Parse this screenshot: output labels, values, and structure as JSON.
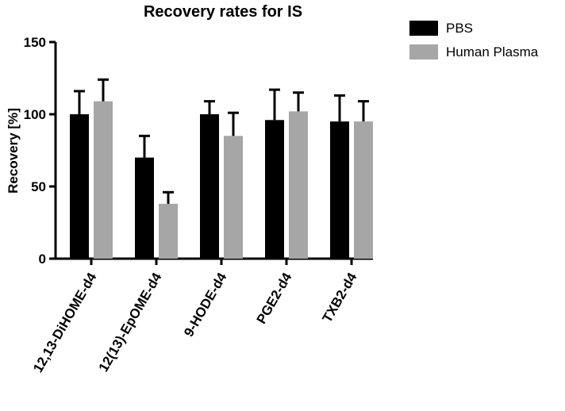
{
  "chart_data": {
    "type": "bar",
    "title": "Recovery rates for IS",
    "xlabel": "",
    "ylabel": "Recovery [%]",
    "ylim": [
      0,
      150
    ],
    "yticks": [
      0,
      50,
      100,
      150
    ],
    "categories": [
      "12,13-DiHOME-d4",
      "12(13)-EpOME-d4",
      "9-HODE-d4",
      "PGE2-d4",
      "TXB2-d4"
    ],
    "series": [
      {
        "name": "PBS",
        "color": "#000000",
        "values": [
          100,
          70,
          100,
          96,
          95
        ],
        "errors": [
          16,
          15,
          9,
          21,
          18
        ]
      },
      {
        "name": "Human Plasma",
        "color": "#a6a6a6",
        "values": [
          109,
          38,
          85,
          102,
          95
        ],
        "errors": [
          15,
          8,
          16,
          13,
          14
        ]
      }
    ],
    "grid": false,
    "legend_position": "top-right",
    "error_bars": "upper"
  }
}
